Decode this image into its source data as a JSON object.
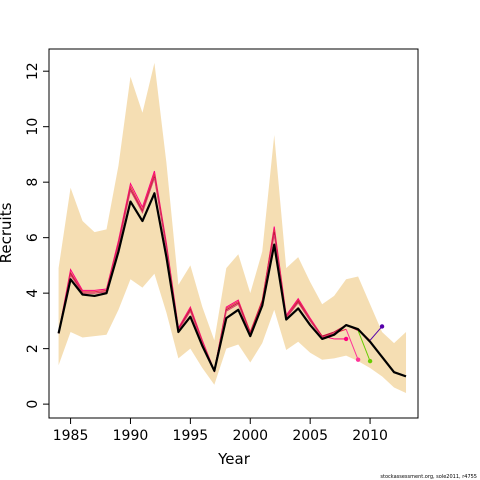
{
  "chart_data": {
    "type": "line",
    "xlabel": "Year",
    "ylabel": "Recruits",
    "credit": "stockassessment.org, sole2011, r4755",
    "xlim": [
      1983.2,
      2014.0
    ],
    "ylim": [
      -0.5,
      12.8
    ],
    "xticks": [
      1985,
      1990,
      1995,
      2000,
      2005,
      2010
    ],
    "yticks": [
      0,
      2,
      4,
      6,
      8,
      10,
      12
    ],
    "grid": false,
    "legend": "none",
    "colors": {
      "band": "#f5deb3",
      "estimate": "#000000",
      "retro": [
        "#ff0080",
        "#e8304a",
        "#c01040",
        "#d8406a",
        "#b02050"
      ],
      "retro_last": [
        "#ff3399",
        "#66cc00",
        "#5500aa"
      ]
    },
    "x": [
      1984,
      1985,
      1986,
      1987,
      1988,
      1989,
      1990,
      1991,
      1992,
      1993,
      1994,
      1995,
      1996,
      1997,
      1998,
      1999,
      2000,
      2001,
      2002,
      2003,
      2004,
      2005,
      2006,
      2007,
      2008,
      2009,
      2010,
      2011,
      2012,
      2013
    ],
    "band_upper": [
      4.9,
      7.8,
      6.6,
      6.2,
      6.3,
      8.6,
      11.8,
      10.5,
      12.3,
      8.7,
      4.3,
      5.0,
      3.5,
      2.3,
      4.9,
      5.4,
      4.0,
      5.5,
      9.7,
      4.9,
      5.3,
      4.4,
      3.6,
      3.9,
      4.5,
      4.6,
      3.6,
      2.6,
      2.2,
      2.6
    ],
    "band_lower": [
      1.4,
      2.6,
      2.4,
      2.45,
      2.5,
      3.4,
      4.5,
      4.2,
      4.7,
      3.3,
      1.65,
      2.0,
      1.3,
      0.7,
      2.0,
      2.15,
      1.5,
      2.2,
      3.4,
      1.95,
      2.25,
      1.85,
      1.6,
      1.65,
      1.75,
      1.55,
      1.3,
      1.0,
      0.6,
      0.4
    ],
    "series": [
      {
        "values": [
          2.55,
          4.5,
          3.95,
          3.9,
          4.0,
          5.5,
          7.3,
          6.6,
          7.6,
          5.3,
          2.6,
          3.15,
          2.1,
          1.2,
          3.1,
          3.4,
          2.45,
          3.55,
          5.75,
          3.05,
          3.45,
          2.85,
          2.35,
          2.5,
          2.85,
          2.7,
          2.25,
          1.7,
          1.15,
          1.0
        ]
      }
    ],
    "retro": [
      {
        "end": 2008,
        "values": [
          2.55,
          4.85,
          4.1,
          4.1,
          4.15,
          5.9,
          7.95,
          7.1,
          8.4,
          5.8,
          2.75,
          3.5,
          2.3,
          1.2,
          3.5,
          3.75,
          2.6,
          3.7,
          6.4,
          3.2,
          3.8,
          3.1,
          2.45,
          2.35,
          2.35
        ]
      },
      {
        "end": 2009,
        "values": [
          2.55,
          4.75,
          4.05,
          4.05,
          4.1,
          5.8,
          7.85,
          7.0,
          8.3,
          5.7,
          2.7,
          3.45,
          2.25,
          1.2,
          3.45,
          3.7,
          2.6,
          3.75,
          6.3,
          3.15,
          3.75,
          3.05,
          2.45,
          2.55,
          2.7,
          1.6
        ]
      },
      {
        "end": 2010,
        "values": [
          2.55,
          4.7,
          4.0,
          4.0,
          4.05,
          5.75,
          7.75,
          6.95,
          8.2,
          5.65,
          2.7,
          3.4,
          2.2,
          1.2,
          3.4,
          3.65,
          2.55,
          3.7,
          6.2,
          3.1,
          3.7,
          3.0,
          2.45,
          2.6,
          2.85,
          2.65,
          1.55
        ]
      },
      {
        "end": 2011,
        "values": [
          2.55,
          4.65,
          4.0,
          4.0,
          4.05,
          5.7,
          7.7,
          6.9,
          8.15,
          5.6,
          2.65,
          3.35,
          2.2,
          1.2,
          3.35,
          3.6,
          2.5,
          3.65,
          6.1,
          3.1,
          3.65,
          3.0,
          2.4,
          2.55,
          2.85,
          2.7,
          2.3,
          2.8
        ]
      }
    ]
  }
}
